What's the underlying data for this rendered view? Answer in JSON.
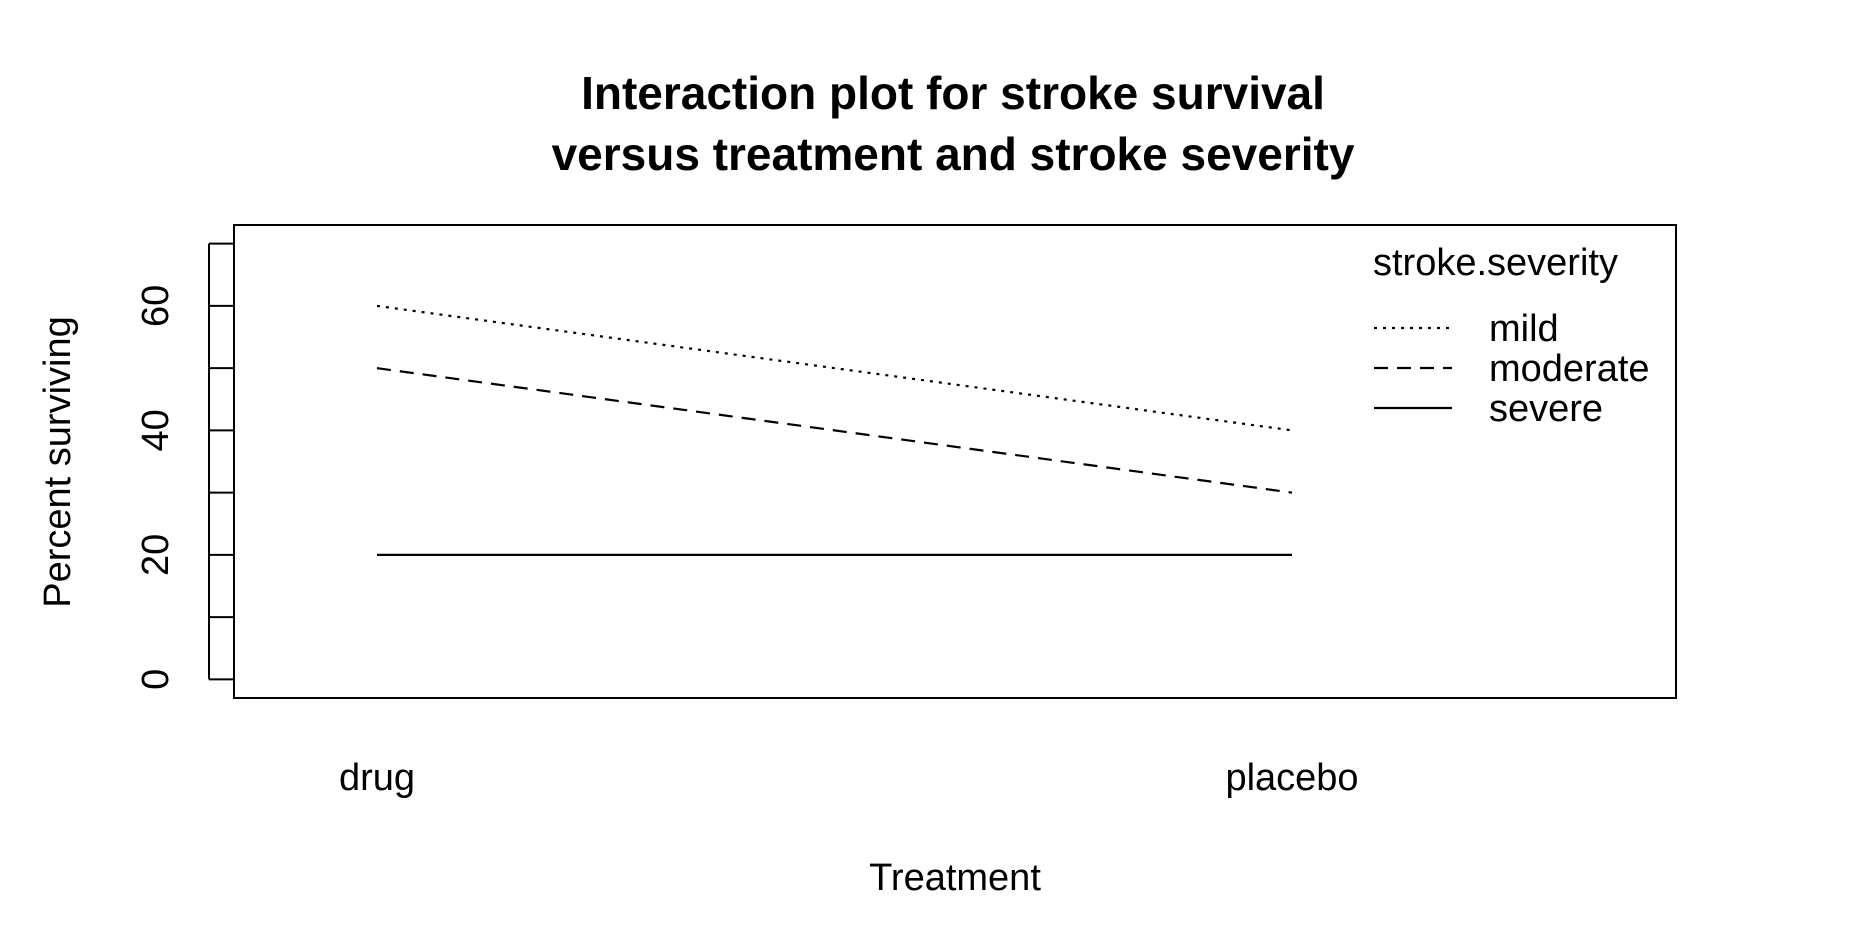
{
  "chart_data": {
    "type": "line",
    "title_lines": [
      "Interaction plot for stroke survival",
      "versus treatment and stroke severity"
    ],
    "xlabel": "Treatment",
    "ylabel": "Percent surviving",
    "categories": [
      "drug",
      "placebo"
    ],
    "yticks": [
      0,
      10,
      20,
      30,
      40,
      50,
      60,
      70
    ],
    "ytick_labels": [
      {
        "value": 0,
        "label": "0"
      },
      {
        "value": 20,
        "label": "20"
      },
      {
        "value": 40,
        "label": "40"
      },
      {
        "value": 60,
        "label": "60"
      }
    ],
    "ylim": [
      -3,
      73
    ],
    "legend_title": "stroke.severity",
    "legend_position": "top-right",
    "grid": false,
    "series": [
      {
        "name": "mild",
        "values": [
          60,
          40
        ],
        "linestyle": "dotted"
      },
      {
        "name": "moderate",
        "values": [
          50,
          30
        ],
        "linestyle": "dashed"
      },
      {
        "name": "severe",
        "values": [
          20,
          20
        ],
        "linestyle": "solid"
      }
    ]
  }
}
